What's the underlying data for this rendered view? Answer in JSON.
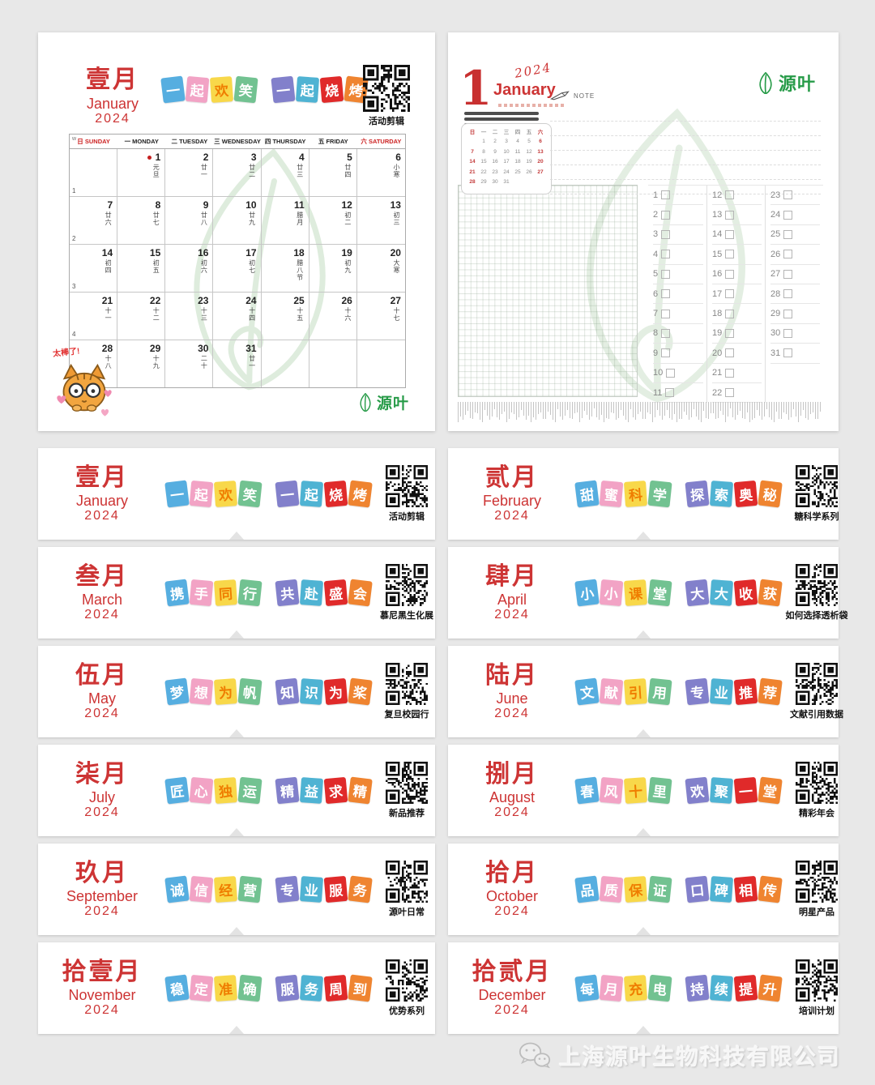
{
  "left_page": {
    "month_cn": "壹月",
    "month_en": "January",
    "year": "2024",
    "tiles": [
      "一",
      "起",
      "欢",
      "笑",
      "一",
      "起",
      "烧",
      "烤"
    ],
    "qr_caption": "活动剪辑",
    "week_col_label": "w",
    "weekdays": [
      {
        "cn": "日",
        "en": "SUNDAY",
        "red": true
      },
      {
        "cn": "一",
        "en": "MONDAY"
      },
      {
        "cn": "二",
        "en": "TUESDAY"
      },
      {
        "cn": "三",
        "en": "WEDNESDAY"
      },
      {
        "cn": "四",
        "en": "THURSDAY"
      },
      {
        "cn": "五",
        "en": "FRIDAY"
      },
      {
        "cn": "六",
        "en": "SATURDAY",
        "red": true
      }
    ],
    "weeks": [
      {
        "num": "1",
        "days": [
          {},
          {
            "d": "1",
            "lunar": "元旦",
            "dot": true
          },
          {
            "d": "2",
            "lunar": "廿一"
          },
          {
            "d": "3",
            "lunar": "廿二"
          },
          {
            "d": "4",
            "lunar": "廿三"
          },
          {
            "d": "5",
            "lunar": "廿四"
          },
          {
            "d": "6",
            "lunar": "小寒"
          }
        ]
      },
      {
        "num": "2",
        "days": [
          {
            "d": "7",
            "lunar": "廿六"
          },
          {
            "d": "8",
            "lunar": "廿七"
          },
          {
            "d": "9",
            "lunar": "廿八"
          },
          {
            "d": "10",
            "lunar": "廿九"
          },
          {
            "d": "11",
            "lunar": "腊月"
          },
          {
            "d": "12",
            "lunar": "初二"
          },
          {
            "d": "13",
            "lunar": "初三"
          }
        ]
      },
      {
        "num": "3",
        "days": [
          {
            "d": "14",
            "lunar": "初四"
          },
          {
            "d": "15",
            "lunar": "初五"
          },
          {
            "d": "16",
            "lunar": "初六"
          },
          {
            "d": "17",
            "lunar": "初七"
          },
          {
            "d": "18",
            "lunar": "腊八节"
          },
          {
            "d": "19",
            "lunar": "初九"
          },
          {
            "d": "20",
            "lunar": "大寒"
          }
        ]
      },
      {
        "num": "4",
        "days": [
          {
            "d": "21",
            "lunar": "十一"
          },
          {
            "d": "22",
            "lunar": "十二"
          },
          {
            "d": "23",
            "lunar": "十三"
          },
          {
            "d": "24",
            "lunar": "十四"
          },
          {
            "d": "25",
            "lunar": "十五"
          },
          {
            "d": "26",
            "lunar": "十六"
          },
          {
            "d": "27",
            "lunar": "十七"
          }
        ]
      },
      {
        "num": "5",
        "days": [
          {
            "d": "28",
            "lunar": "十八"
          },
          {
            "d": "29",
            "lunar": "十九"
          },
          {
            "d": "30",
            "lunar": "二十"
          },
          {
            "d": "31",
            "lunar": "廿一"
          },
          {},
          {},
          {}
        ]
      }
    ],
    "sticker_text": "太棒了!",
    "logo_text": "源叶"
  },
  "right_page": {
    "day": "1",
    "year": "2024",
    "month": "January",
    "note_label": "NOTE",
    "mini_calendar": {
      "header": [
        "日",
        "一",
        "二",
        "三",
        "四",
        "五",
        "六"
      ],
      "rows": [
        [
          "",
          "1",
          "2",
          "3",
          "4",
          "5",
          "6"
        ],
        [
          "7",
          "8",
          "9",
          "10",
          "11",
          "12",
          "13"
        ],
        [
          "14",
          "15",
          "16",
          "17",
          "18",
          "19",
          "20"
        ],
        [
          "21",
          "22",
          "23",
          "24",
          "25",
          "26",
          "27"
        ],
        [
          "28",
          "29",
          "30",
          "31",
          "",
          "",
          ""
        ]
      ]
    },
    "checklist_columns": [
      [
        "1",
        "2",
        "3",
        "4",
        "5",
        "6",
        "7",
        "8",
        "9",
        "10",
        "11"
      ],
      [
        "12",
        "13",
        "14",
        "15",
        "16",
        "17",
        "18",
        "19",
        "20",
        "21",
        "22"
      ],
      [
        "23",
        "24",
        "25",
        "26",
        "27",
        "28",
        "29",
        "30",
        "31"
      ]
    ],
    "logo_text": "源叶"
  },
  "strips": [
    {
      "month_cn": "壹月",
      "month_en": "January",
      "year": "2024",
      "tiles": [
        "一",
        "起",
        "欢",
        "笑",
        "一",
        "起",
        "烧",
        "烤"
      ],
      "qr_caption": "活动剪辑"
    },
    {
      "month_cn": "贰月",
      "month_en": "February",
      "year": "2024",
      "tiles": [
        "甜",
        "蜜",
        "科",
        "学",
        "探",
        "索",
        "奥",
        "秘"
      ],
      "qr_caption": "糖科学系列"
    },
    {
      "month_cn": "叁月",
      "month_en": "March",
      "year": "2024",
      "tiles": [
        "携",
        "手",
        "同",
        "行",
        "共",
        "赴",
        "盛",
        "会"
      ],
      "qr_caption": "慕尼黑生化展"
    },
    {
      "month_cn": "肆月",
      "month_en": "April",
      "year": "2024",
      "tiles": [
        "小",
        "小",
        "课",
        "堂",
        "大",
        "大",
        "收",
        "获"
      ],
      "qr_caption": "如何选择透析袋"
    },
    {
      "month_cn": "伍月",
      "month_en": "May",
      "year": "2024",
      "tiles": [
        "梦",
        "想",
        "为",
        "帆",
        "知",
        "识",
        "为",
        "桨"
      ],
      "qr_caption": "复旦校园行"
    },
    {
      "month_cn": "陆月",
      "month_en": "June",
      "year": "2024",
      "tiles": [
        "文",
        "献",
        "引",
        "用",
        "专",
        "业",
        "推",
        "荐"
      ],
      "qr_caption": "文献引用数据"
    },
    {
      "month_cn": "柒月",
      "month_en": "July",
      "year": "2024",
      "tiles": [
        "匠",
        "心",
        "独",
        "运",
        "精",
        "益",
        "求",
        "精"
      ],
      "qr_caption": "新品推荐"
    },
    {
      "month_cn": "捌月",
      "month_en": "August",
      "year": "2024",
      "tiles": [
        "春",
        "风",
        "十",
        "里",
        "欢",
        "聚",
        "一",
        "堂"
      ],
      "qr_caption": "精彩年会"
    },
    {
      "month_cn": "玖月",
      "month_en": "September",
      "year": "2024",
      "tiles": [
        "诚",
        "信",
        "经",
        "营",
        "专",
        "业",
        "服",
        "务"
      ],
      "qr_caption": "源叶日常"
    },
    {
      "month_cn": "拾月",
      "month_en": "October",
      "year": "2024",
      "tiles": [
        "品",
        "质",
        "保",
        "证",
        "口",
        "碑",
        "相",
        "传"
      ],
      "qr_caption": "明星产品"
    },
    {
      "month_cn": "拾壹月",
      "month_en": "November",
      "year": "2024",
      "tiles": [
        "稳",
        "定",
        "准",
        "确",
        "服",
        "务",
        "周",
        "到"
      ],
      "qr_caption": "优势系列"
    },
    {
      "month_cn": "拾贰月",
      "month_en": "December",
      "year": "2024",
      "tiles": [
        "每",
        "月",
        "充",
        "电",
        "持",
        "续",
        "提",
        "升"
      ],
      "qr_caption": "培训计划"
    }
  ],
  "footer": {
    "company": "上海源叶生物科技有限公司"
  },
  "colors": {
    "accent_red": "#cd3434",
    "brand_green": "#279b48",
    "tile_colors": [
      "#56aee0",
      "#f2a3c5",
      "#f8d84a",
      "#72c291",
      "#8280cb",
      "#4fb3d3",
      "#e02a2a",
      "#ef8430"
    ]
  }
}
